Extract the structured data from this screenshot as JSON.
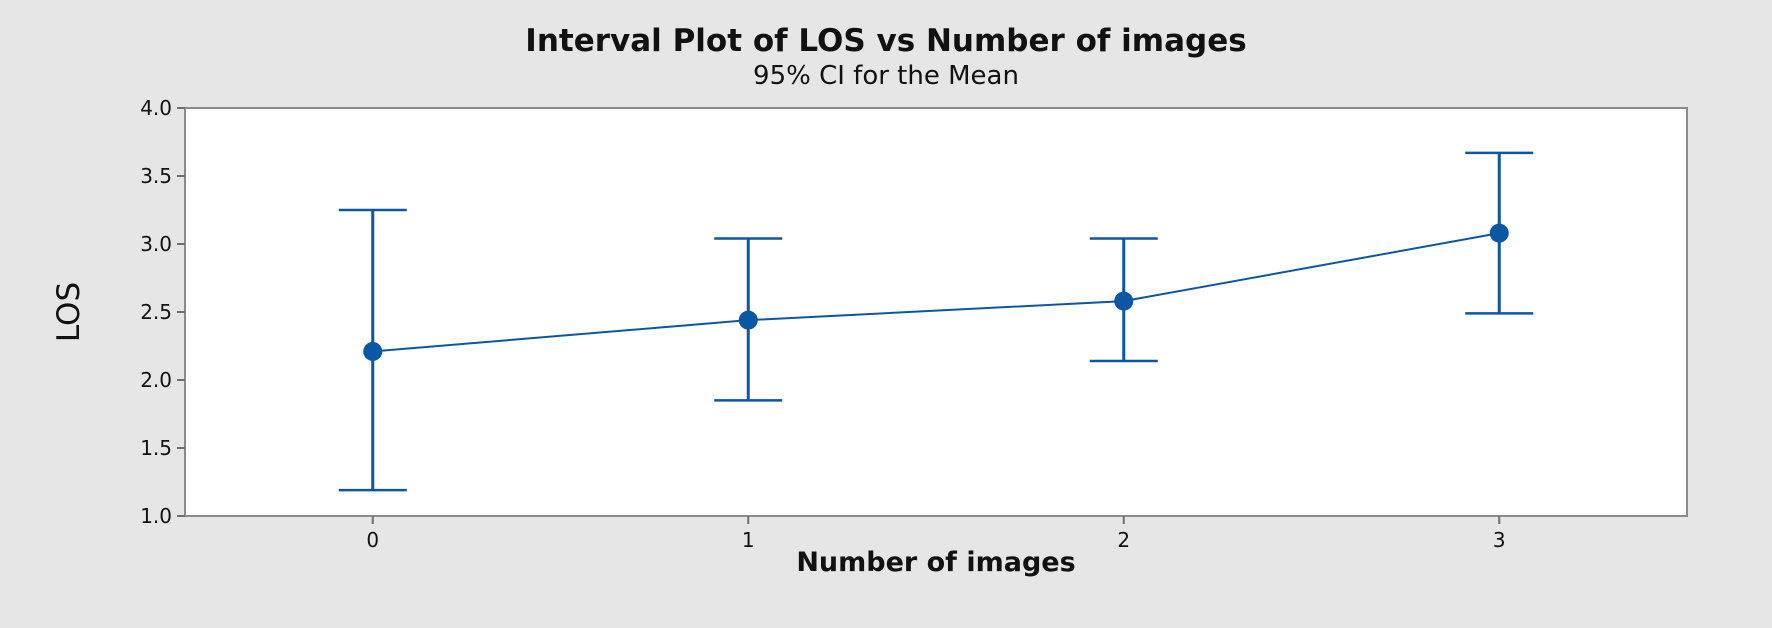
{
  "chart_data": {
    "type": "line",
    "title": "Interval Plot of LOS vs Number of images",
    "subtitle": "95% CI for the Mean",
    "xlabel": "Number of images",
    "ylabel": "LOS",
    "categories": [
      "0",
      "1",
      "2",
      "3"
    ],
    "x": [
      0,
      1,
      2,
      3
    ],
    "xlim": [
      -0.5,
      3.5
    ],
    "ylim": [
      1.0,
      4.0
    ],
    "y_ticks": [
      1.0,
      1.5,
      2.0,
      2.5,
      3.0,
      3.5,
      4.0
    ],
    "y_tick_labels": [
      "1.0",
      "1.5",
      "2.0",
      "2.5",
      "3.0",
      "3.5",
      "4.0"
    ],
    "grid": false,
    "series": [
      {
        "means": [
          2.21,
          2.44,
          2.58,
          3.08
        ],
        "lower": [
          1.19,
          1.85,
          2.14,
          2.49
        ],
        "upper": [
          3.25,
          3.04,
          3.04,
          3.67
        ]
      }
    ],
    "colors": {
      "series": "#0b57a4",
      "background": "#e6e6e6",
      "plot_background": "#ffffff",
      "axis": "#8c8c8c"
    }
  }
}
